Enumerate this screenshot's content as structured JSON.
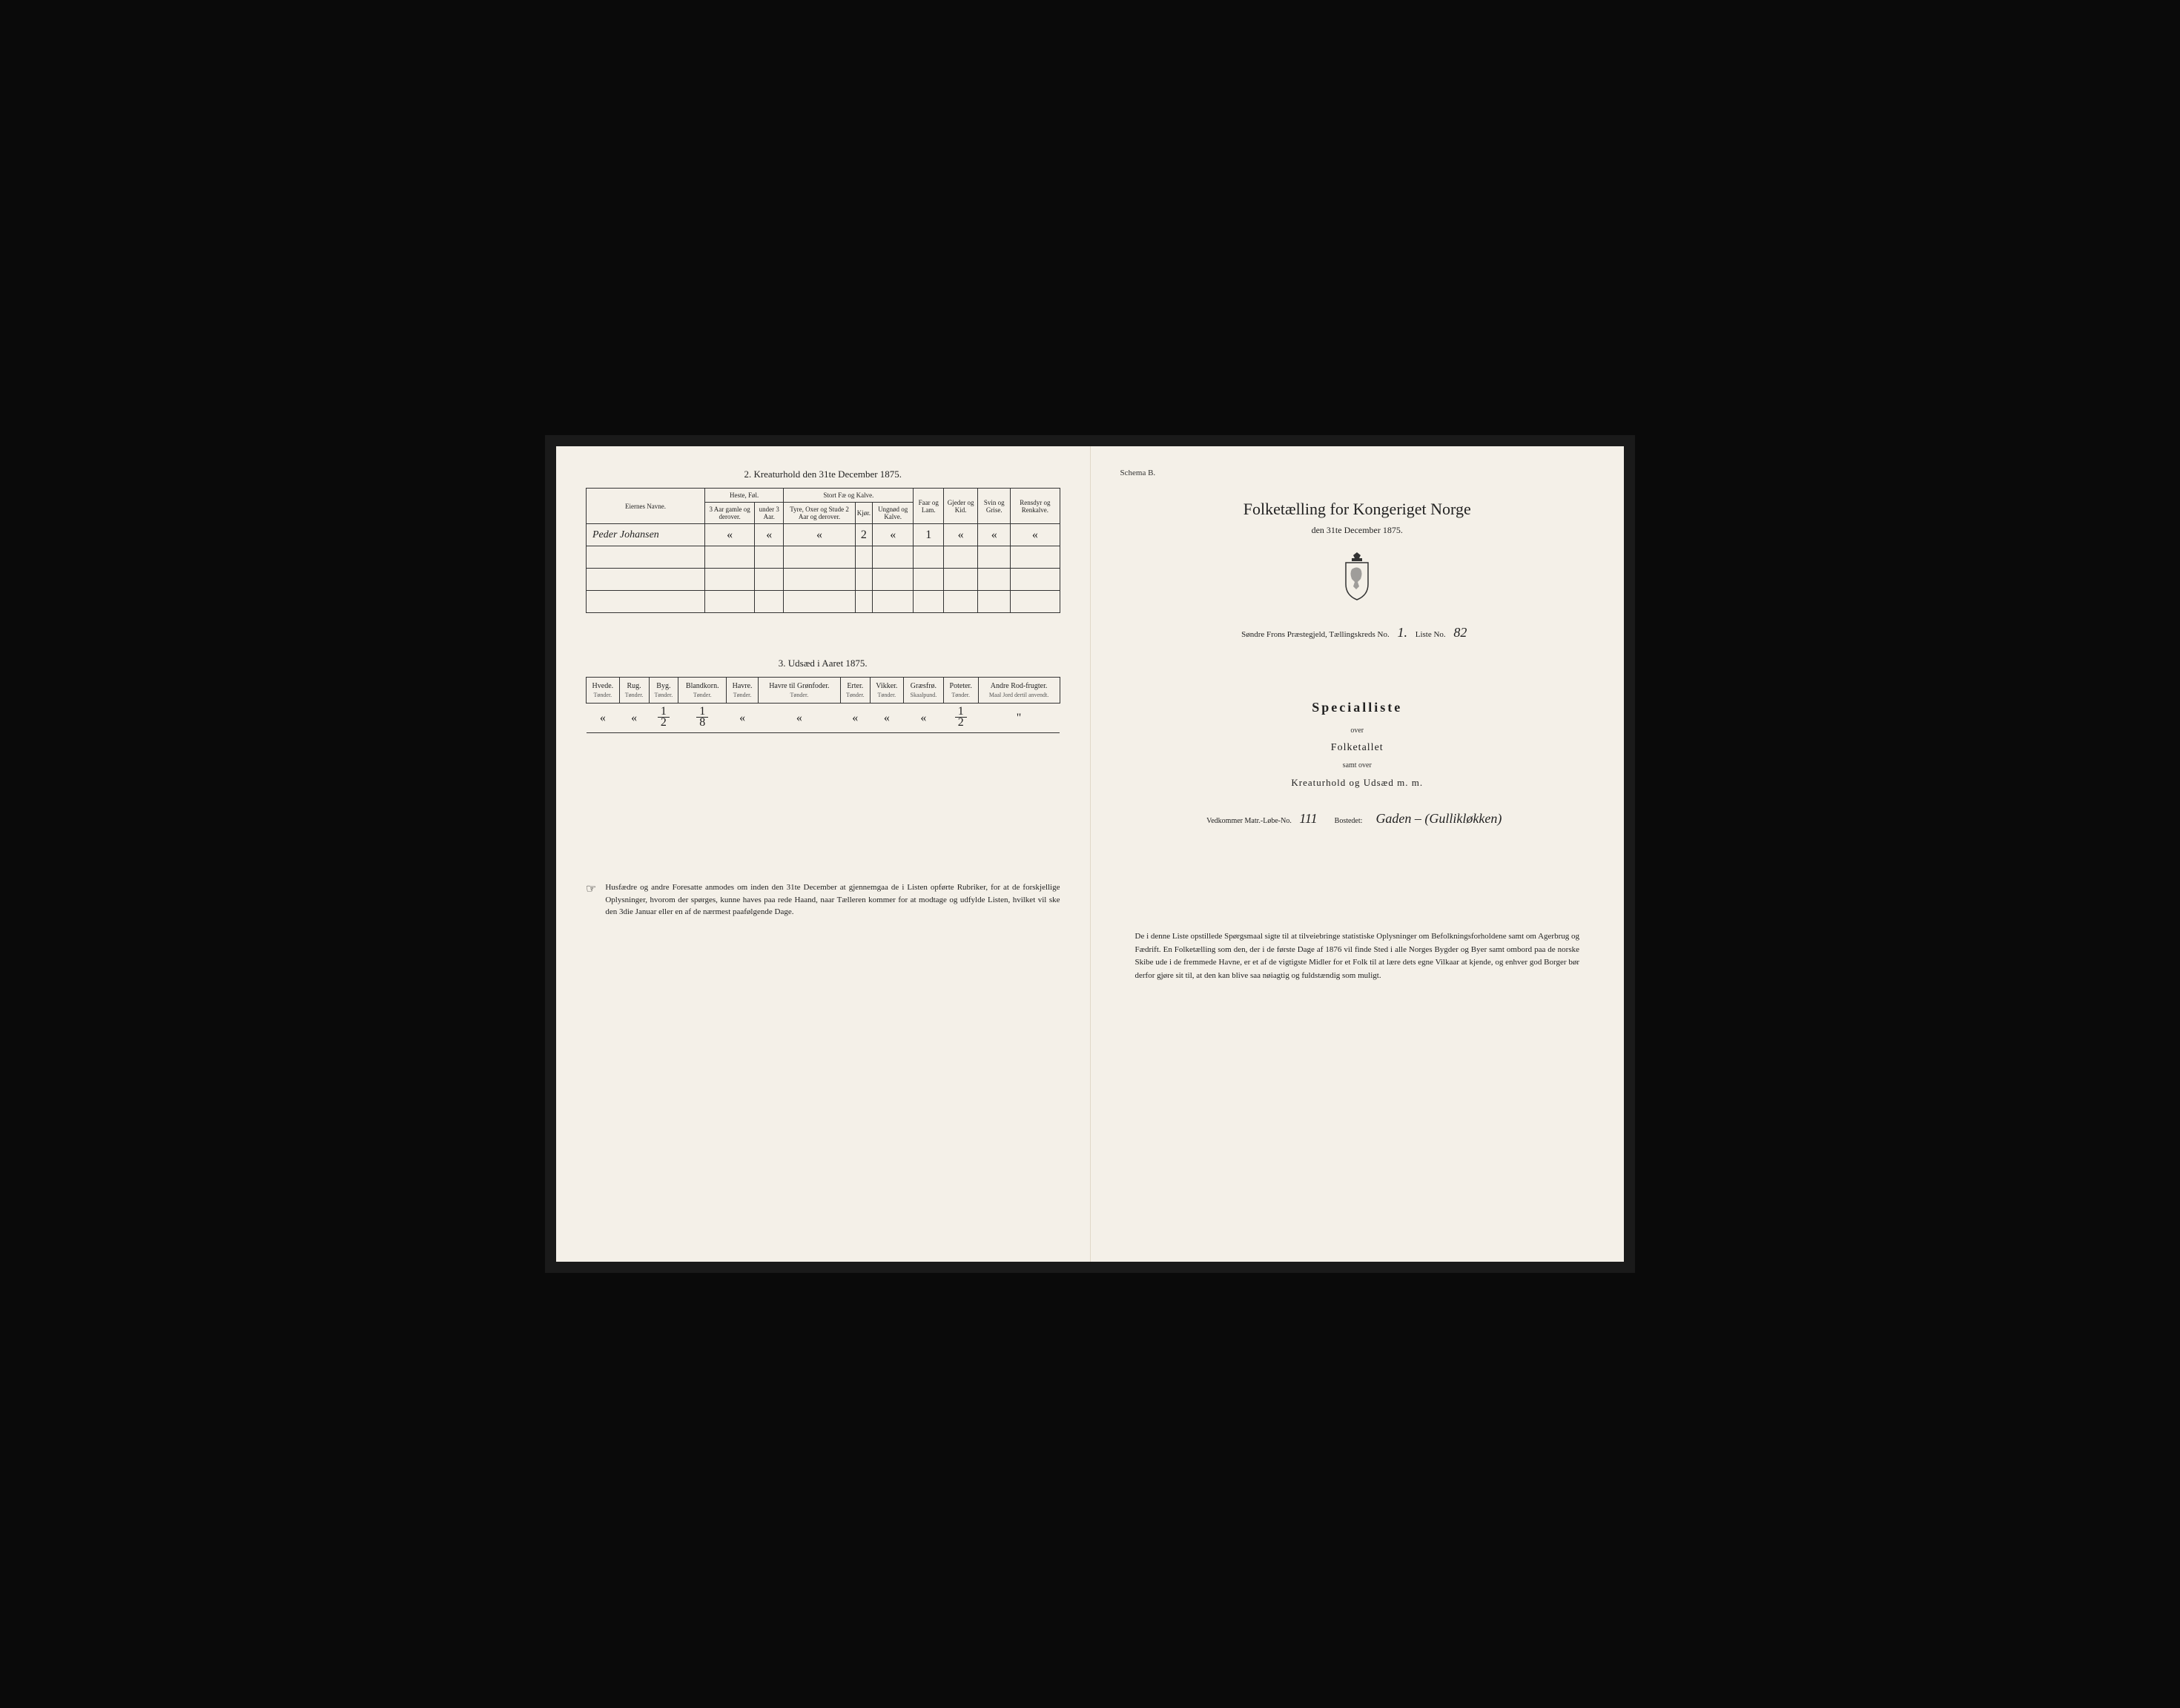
{
  "leftPage": {
    "section2Title": "2. Kreaturhold den 31te December 1875.",
    "livestockTable": {
      "nameHeader": "Eiernes Navne.",
      "groupHeaders": [
        "Heste, Føl.",
        "Stort Fæ og Kalve."
      ],
      "subHeaders": [
        "3 Aar gamle og derover.",
        "under 3 Aar.",
        "Tyre, Oxer og Stude 2 Aar og derover.",
        "Kjør.",
        "Ungnød og Kalve.",
        "Faar og Lam.",
        "Gjeder og Kid.",
        "Svin og Grise.",
        "Rensdyr og Renkalve."
      ],
      "row": {
        "name": "Peder Johansen",
        "values": [
          "«",
          "«",
          "«",
          "2",
          "«",
          "1",
          "«",
          "«",
          "«"
        ]
      }
    },
    "section3Title": "3. Udsæd i Aaret 1875.",
    "sowingTable": {
      "headers": [
        {
          "label": "Hvede.",
          "sub": "Tønder."
        },
        {
          "label": "Rug.",
          "sub": "Tønder."
        },
        {
          "label": "Byg.",
          "sub": "Tønder."
        },
        {
          "label": "Blandkorn.",
          "sub": "Tønder."
        },
        {
          "label": "Havre.",
          "sub": "Tønder."
        },
        {
          "label": "Havre til Grønfoder.",
          "sub": "Tønder."
        },
        {
          "label": "Erter.",
          "sub": "Tønder."
        },
        {
          "label": "Vikker.",
          "sub": "Tønder."
        },
        {
          "label": "Græsfrø.",
          "sub": "Skaalpund."
        },
        {
          "label": "Poteter.",
          "sub": "Tønder."
        },
        {
          "label": "Andre Rod-frugter.",
          "sub": "Maal Jord dertil anvendt."
        }
      ],
      "values": [
        "«",
        "«",
        "1/2",
        "1/8",
        "«",
        "«",
        "«",
        "«",
        "«",
        "1/2",
        "\""
      ]
    },
    "footnote": "Husfædre og andre Foresatte anmodes om inden den 31te December at gjennemgaa de i Listen opførte Rubriker, for at de forskjellige Oplysninger, hvorom der spørges, kunne haves paa rede Haand, naar Tælleren kommer for at modtage og udfylde Listen, hvilket vil ske den 3die Januar eller en af de nærmest paafølgende Dage."
  },
  "rightPage": {
    "schemaLabel": "Schema B.",
    "mainTitle": "Folketælling for Kongeriget Norge",
    "subtitle": "den 31te December 1875.",
    "prestegjeldPrefix": "Søndre Frons Præstegjeld, Tællingskreds No.",
    "kredsNo": "1.",
    "listeLabel": "Liste No.",
    "listeNo": "82",
    "specialliste": "Specialliste",
    "over1": "over",
    "folketallet": "Folketallet",
    "samtOver": "samt over",
    "kreaturhold": "Kreaturhold og Udsæd m. m.",
    "matrLabel": "Vedkommer Matr.-Løbe-No.",
    "matrNo": "111",
    "bostedLabel": "Bostedet:",
    "bostedName": "Gaden – (Gullikløkken)",
    "footnote": "De i denne Liste opstillede Spørgsmaal sigte til at tilveiebringe statistiske Oplysninger om Befolkningsforholdene samt om Agerbrug og Fædrift. En Folketælling som den, der i de første Dage af 1876 vil finde Sted i alle Norges Bygder og Byer samt ombord paa de norske Skibe ude i de fremmede Havne, er et af de vigtigste Midler for et Folk til at lære dets egne Vilkaar at kjende, og enhver god Borger bør derfor gjøre sit til, at den kan blive saa nøiagtig og fuldstændig som muligt."
  }
}
